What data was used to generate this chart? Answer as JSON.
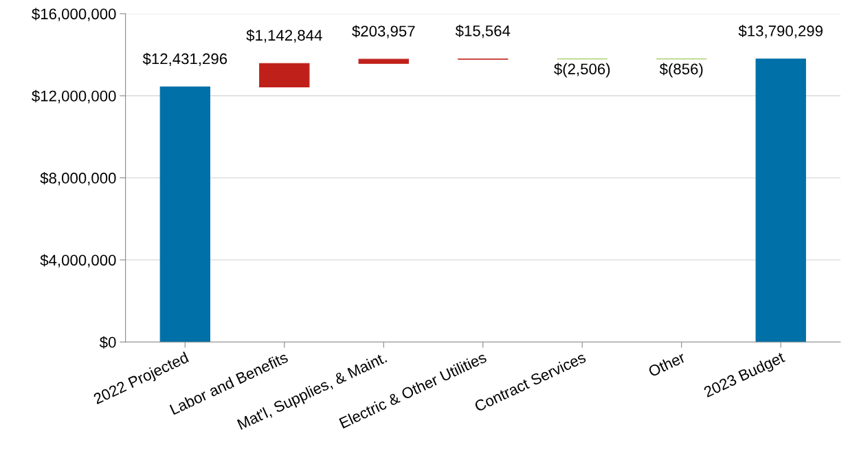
{
  "chart_data": {
    "type": "bar",
    "categories": [
      "2022 Projected",
      "Labor and Benefits",
      "Mat'l, Supplies, & Maint.",
      "Electric & Other Utilities",
      "Contract Services",
      "Other",
      "2023 Budget"
    ],
    "values": [
      12431296,
      1142844,
      203957,
      15564,
      -2506,
      -856,
      13790299
    ],
    "base": [
      0,
      12431296,
      13574140,
      13778097,
      13793661,
      13791155,
      0
    ],
    "colors": [
      "#0070a8",
      "#c0201a",
      "#c0201a",
      "#c0201a",
      "#8ab83a",
      "#8ab83a",
      "#0070a8"
    ],
    "value_labels": [
      "$12,431,296",
      "$1,142,844",
      "$203,957",
      "$15,564",
      "$(2,506)",
      "$(856)",
      "$13,790,299"
    ],
    "ylim": [
      0,
      16000000
    ],
    "yticks": [
      {
        "value": 0,
        "label": "$0"
      },
      {
        "value": 4000000,
        "label": "$4,000,000"
      },
      {
        "value": 8000000,
        "label": "$8,000,000"
      },
      {
        "value": 12000000,
        "label": "$12,000,000"
      },
      {
        "value": 16000000,
        "label": "$16,000,000"
      }
    ],
    "grid": "y"
  }
}
